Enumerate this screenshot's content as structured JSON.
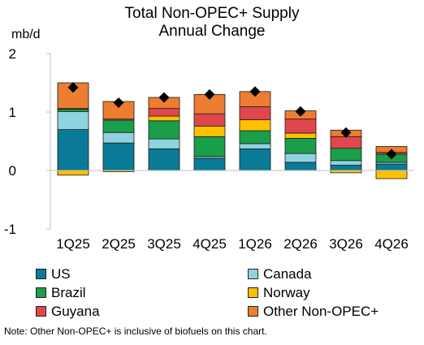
{
  "chart_data": {
    "type": "bar",
    "subtype": "stacked-with-total-markers",
    "title": "Total Non-OPEC+ Supply",
    "subtitle": "Annual Change",
    "ylabel": "mb/d",
    "ylim": [
      -1,
      2
    ],
    "yticks": [
      2,
      1,
      0,
      -1
    ],
    "grid": false,
    "legend_position": "bottom",
    "categories": [
      "1Q25",
      "2Q25",
      "3Q25",
      "4Q25",
      "1Q26",
      "2Q26",
      "3Q26",
      "4Q26"
    ],
    "series": [
      {
        "name": "US",
        "color": "#0a7b96",
        "values": [
          0.7,
          0.47,
          0.37,
          0.21,
          0.37,
          0.14,
          0.09,
          0.11
        ]
      },
      {
        "name": "Canada",
        "color": "#8fd3e0",
        "values": [
          0.31,
          0.18,
          0.17,
          0.03,
          0.09,
          0.15,
          0.08,
          0.03
        ]
      },
      {
        "name": "Brazil",
        "color": "#1b9e49",
        "values": [
          0.04,
          0.21,
          0.31,
          0.34,
          0.22,
          0.26,
          0.21,
          0.14
        ]
      },
      {
        "name": "Norway",
        "color": "#ffc000",
        "values": [
          -0.08,
          -0.02,
          0.08,
          0.18,
          0.19,
          0.09,
          -0.04,
          -0.14
        ]
      },
      {
        "name": "Guyana",
        "color": "#e0474c",
        "values": [
          0.01,
          0.02,
          0.13,
          0.21,
          0.22,
          0.24,
          0.2,
          0.03
        ]
      },
      {
        "name": "Other Non-OPEC+",
        "color": "#ed7d31",
        "values": [
          0.44,
          0.3,
          0.19,
          0.33,
          0.26,
          0.14,
          0.11,
          0.1
        ]
      }
    ],
    "totals": [
      1.42,
      1.16,
      1.25,
      1.3,
      1.35,
      1.01,
      0.65,
      0.28
    ],
    "total_marker": "diamond",
    "note": "Note: Other Non-OPEC+  is inclusive of biofuels on this chart."
  }
}
